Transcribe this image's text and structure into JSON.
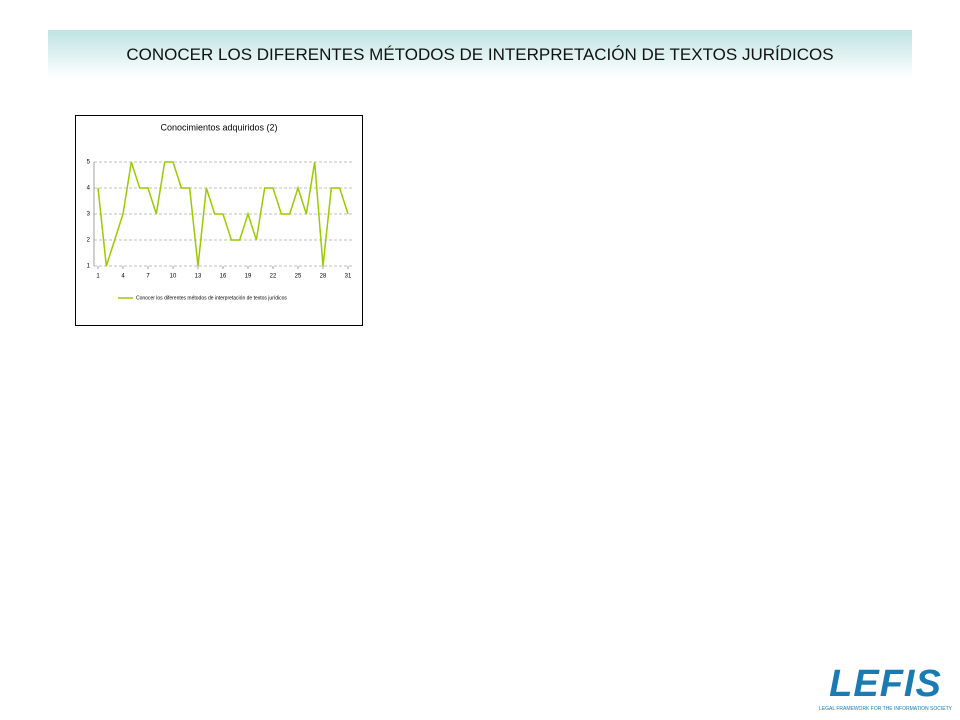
{
  "header": {
    "title": "CONOCER LOS DIFERENTES MÉTODOS DE INTERPRETACIÓN DE TEXTOS JURÍDICOS"
  },
  "logo": {
    "text": "LEFIS",
    "tagline": "LEGAL FRAMEWORK FOR THE INFORMATION SOCIETY"
  },
  "chart_data": {
    "type": "line",
    "title": "Conocimientos adquiridos (2)",
    "x": [
      1,
      2,
      3,
      4,
      5,
      6,
      7,
      8,
      9,
      10,
      11,
      12,
      13,
      14,
      15,
      16,
      17,
      18,
      19,
      20,
      21,
      22,
      23,
      24,
      25,
      26,
      27,
      28,
      29,
      30,
      31
    ],
    "series": [
      {
        "name": "Conocer los diferentes métodos de interpretación de textos jurídicos",
        "color": "#99cc00",
        "values": [
          4,
          1,
          2,
          3,
          5,
          4,
          4,
          3,
          5,
          5,
          4,
          4,
          1,
          4,
          3,
          3,
          2,
          2,
          3,
          2,
          4,
          4,
          3,
          3,
          4,
          3,
          5,
          1,
          4,
          4,
          3
        ]
      }
    ],
    "xlim": [
      1,
      31
    ],
    "xticks": [
      1,
      4,
      7,
      10,
      13,
      16,
      19,
      22,
      25,
      28,
      31
    ],
    "ylim": [
      1,
      5
    ],
    "yticks": [
      1,
      2,
      3,
      4,
      5
    ],
    "grid": true,
    "legend": "bottom"
  }
}
